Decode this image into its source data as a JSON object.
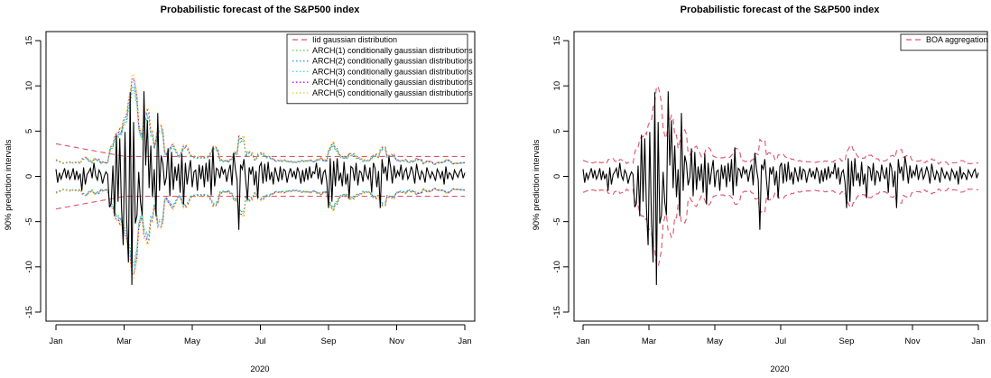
{
  "chart_data": [
    {
      "type": "line",
      "title": "Probabilistic forecast of the S&P500 index",
      "xlabel": "2020",
      "ylabel": "90% prediction intervals",
      "ylim": [
        -16,
        16
      ],
      "yticks": [
        -15,
        -10,
        -5,
        0,
        5,
        10,
        15
      ],
      "xticks": [
        "Jan",
        "Mar",
        "May",
        "Jul",
        "Sep",
        "Nov",
        "Jan"
      ],
      "legend_position": "top-right",
      "grid": false,
      "observed_color": "#000000",
      "series": [
        {
          "name": "Iid gaussian distribution",
          "color": "#df536b",
          "style": "dashed",
          "interval_half_width": 2.2,
          "start_half_width": 3.6
        },
        {
          "name": "ARCH(1) conditionally gaussian distributions",
          "color": "#61d04f",
          "style": "dotted",
          "scale": 0.95
        },
        {
          "name": "ARCH(2) conditionally gaussian distributions",
          "color": "#2297e6",
          "style": "dotted",
          "scale": 1.0
        },
        {
          "name": "ARCH(3) conditionally gaussian distributions",
          "color": "#28e2e5",
          "style": "dotted",
          "scale": 1.05
        },
        {
          "name": "ARCH(4) conditionally gaussian distributions",
          "color": "#cd0bbc",
          "style": "dotted",
          "scale": 1.1
        },
        {
          "name": "ARCH(5) conditionally gaussian distributions",
          "color": "#f5c710",
          "style": "dotted",
          "scale": 1.15
        }
      ]
    },
    {
      "type": "line",
      "title": "Probabilistic forecast of the S&P500 index",
      "xlabel": "2020",
      "ylabel": "90% prediction intervals",
      "ylim": [
        -16,
        16
      ],
      "yticks": [
        -15,
        -10,
        -5,
        0,
        5,
        10,
        15
      ],
      "xticks": [
        "Jan",
        "Mar",
        "May",
        "Jul",
        "Sep",
        "Nov",
        "Jan"
      ],
      "legend_position": "top-right",
      "grid": false,
      "observed_color": "#000000",
      "series": [
        {
          "name": "BOA aggregation",
          "color": "#df536b",
          "style": "dashed",
          "scale": 1.0
        }
      ]
    }
  ],
  "returns_daily": [
    0.8,
    -0.7,
    0.4,
    -0.3,
    0.3,
    0.9,
    -0.2,
    0.7,
    -0.3,
    0.1,
    0.9,
    -0.4,
    0.6,
    -0.3,
    0.3,
    -1.6,
    1.0,
    -0.9,
    0.2,
    0.5,
    0.9,
    -0.2,
    1.5,
    0.1,
    -0.4,
    0.7,
    0.3,
    -0.8,
    0.0,
    0.5,
    0.2,
    -3.4,
    -3.0,
    1.2,
    -4.4,
    4.6,
    -2.8,
    4.2,
    -3.4,
    -7.6,
    4.9,
    -4.9,
    -9.5,
    9.3,
    -12.0,
    6.0,
    -5.2,
    -4.3,
    0.5,
    -2.9,
    -4.3,
    9.4,
    1.2,
    6.2,
    -1.3,
    3.4,
    -2.3,
    0.8,
    -4.4,
    7.0,
    -1.6,
    2.3,
    1.4,
    -1.0,
    -0.1,
    3.1,
    -2.2,
    2.7,
    -1.5,
    1.1,
    -0.5,
    1.4,
    -1.8,
    2.5,
    -3.1,
    1.5,
    -0.9,
    0.6,
    1.8,
    -1.2,
    0.5,
    0.7,
    -1.6,
    1.3,
    -0.3,
    1.2,
    -1.2,
    1.5,
    -0.6,
    1.9,
    -2.1,
    3.2,
    -1.1,
    0.9,
    0.7,
    -0.2,
    1.1,
    0.3,
    0.8,
    -0.6,
    0.5,
    1.3,
    -1.0,
    2.6,
    0.8,
    -0.4,
    -5.9,
    1.3,
    0.8,
    1.9,
    -0.5,
    -2.6,
    1.0,
    0.2,
    1.1,
    -1.0,
    0.6,
    -2.4,
    1.1,
    1.5,
    -0.8,
    1.4,
    -0.6,
    1.6,
    -0.4,
    0.5,
    -0.9,
    1.0,
    0.2,
    -0.6,
    1.1,
    -0.4,
    0.8,
    0.6,
    -0.7,
    0.3,
    0.9,
    -0.1,
    0.6,
    -0.3,
    1.0,
    0.4,
    -0.8,
    0.7,
    -0.6,
    0.9,
    -0.4,
    1.1,
    -0.2,
    0.5,
    0.3,
    1.5,
    -0.3,
    1.0,
    -0.9,
    0.4,
    0.7,
    -0.6,
    -3.5,
    2.0,
    -2.8,
    1.7,
    -1.1,
    2.0,
    -0.5,
    0.4,
    -1.1,
    1.6,
    -0.9,
    0.3,
    -2.4,
    1.1,
    0.9,
    -0.5,
    1.5,
    -1.0,
    0.6,
    0.4,
    -0.6,
    1.3,
    0.2,
    -0.3,
    1.0,
    -1.8,
    1.5,
    0.9,
    -1.2,
    0.6,
    -3.5,
    1.9,
    0.3,
    1.1,
    -0.5,
    2.2,
    1.0,
    -0.8,
    1.2,
    -0.2,
    0.6,
    0.1,
    1.3,
    -0.4,
    0.5,
    0.9,
    -0.3,
    0.2,
    1.1,
    0.4,
    -0.8,
    1.4,
    0.3,
    -0.4,
    0.6,
    0.2,
    -0.7,
    1.0,
    0.3,
    -0.2,
    0.5,
    0.1,
    -0.5,
    0.8,
    0.4,
    -0.2,
    0.6,
    -0.9,
    1.1,
    -0.3,
    0.4,
    0.2,
    -0.4,
    0.7,
    0.3,
    -0.1,
    0.5,
    0.8,
    -0.2,
    0.4
  ]
}
